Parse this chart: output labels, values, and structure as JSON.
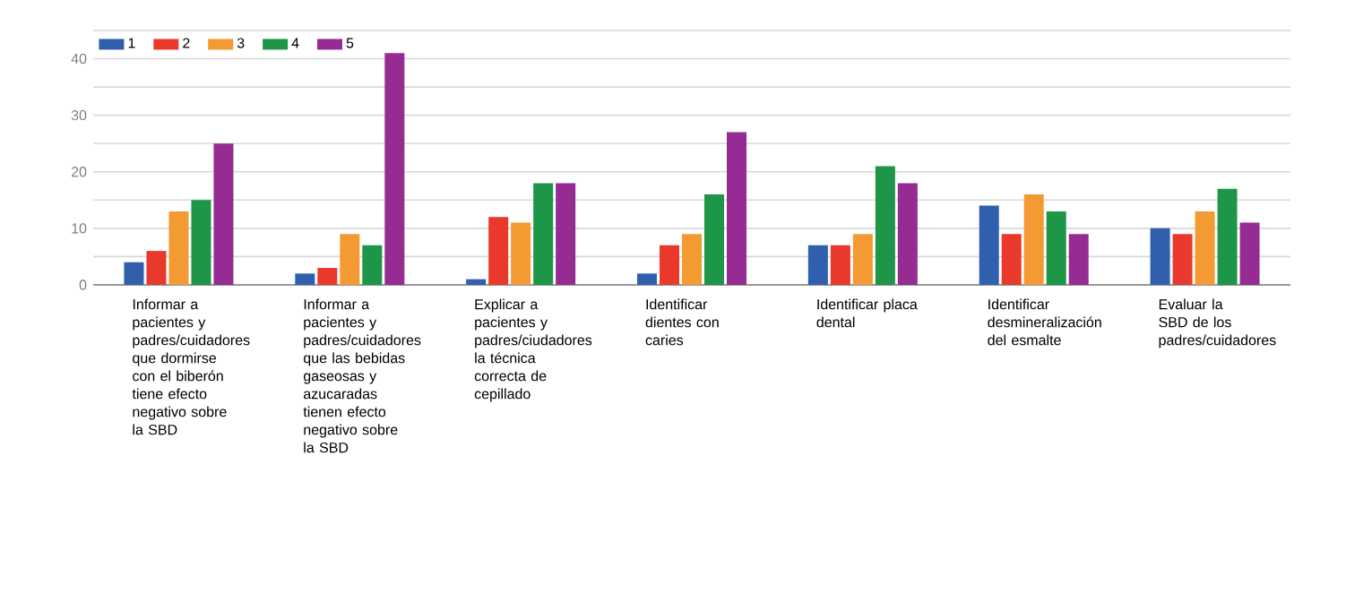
{
  "chart_data": {
    "type": "bar",
    "categories": [
      "Informar a pacientes y padres/cuidadores que dormirse con el biberón tiene efecto negativo sobre la SBD",
      "Informar a pacientes y padres/cuidadores que las bebidas gaseosas y azucaradas tienen efecto negativo sobre la SBD",
      "Explicar a pacientes y padres/ciudadores la técnica correcta de cepillado",
      "Identificar dientes con caries",
      "Identificar placa dental",
      "Identificar desmineralización del esmalte",
      "Evaluar la SBD de los padres/cuidadores"
    ],
    "series": [
      {
        "name": "1",
        "color": "#2f5fad",
        "values": [
          4,
          2,
          1,
          2,
          7,
          14,
          10
        ]
      },
      {
        "name": "2",
        "color": "#e8392c",
        "values": [
          6,
          3,
          12,
          7,
          7,
          9,
          9
        ]
      },
      {
        "name": "3",
        "color": "#f39a32",
        "values": [
          13,
          9,
          11,
          9,
          9,
          16,
          13
        ]
      },
      {
        "name": "4",
        "color": "#1e9648",
        "values": [
          15,
          7,
          18,
          16,
          21,
          13,
          17
        ]
      },
      {
        "name": "5",
        "color": "#952b93",
        "values": [
          25,
          41,
          18,
          27,
          18,
          9,
          11
        ]
      }
    ],
    "ylim": [
      0,
      45
    ],
    "yticks": [
      0,
      {
        "value": 5,
        "label": null
      },
      10,
      {
        "value": 15,
        "label": null
      },
      20,
      {
        "value": 25,
        "label": null
      },
      30,
      {
        "value": 35,
        "label": null
      },
      40,
      {
        "value": 45,
        "label": null
      }
    ],
    "grid": "y",
    "legend": "top left"
  }
}
